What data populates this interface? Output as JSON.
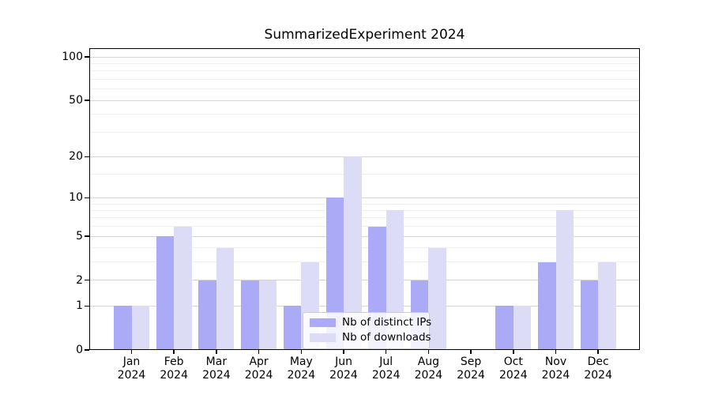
{
  "chart_data": {
    "type": "bar",
    "title": "SummarizedExperiment 2024",
    "categories": [
      "Jan",
      "Feb",
      "Mar",
      "Apr",
      "May",
      "Jun",
      "Jul",
      "Aug",
      "Sep",
      "Oct",
      "Nov",
      "Dec"
    ],
    "year": "2024",
    "series": [
      {
        "name": "Nb of distinct IPs",
        "color": "#aaaaf7",
        "values": [
          1,
          5,
          2,
          2,
          1,
          10,
          6,
          2,
          0,
          1,
          3,
          2
        ]
      },
      {
        "name": "Nb of downloads",
        "color": "#dcdcf6",
        "values": [
          1,
          6,
          4,
          2,
          3,
          20,
          8,
          4,
          0,
          1,
          8,
          3
        ]
      }
    ],
    "xlabel": "",
    "ylabel": "",
    "y_scale": "log1p",
    "ylim": [
      0,
      115
    ],
    "y_ticks": [
      100,
      50,
      20,
      10,
      5,
      2,
      1,
      0
    ],
    "y_minor_ticks": [
      3,
      4,
      6,
      7,
      8,
      9,
      15,
      30,
      40,
      60,
      70,
      80,
      90
    ],
    "grid": "horizontal",
    "grid_major_color": "#d6d6d6",
    "grid_minor_color": "#efefef",
    "axis_color": "#000000",
    "legend_position": "lower-center-inside"
  }
}
